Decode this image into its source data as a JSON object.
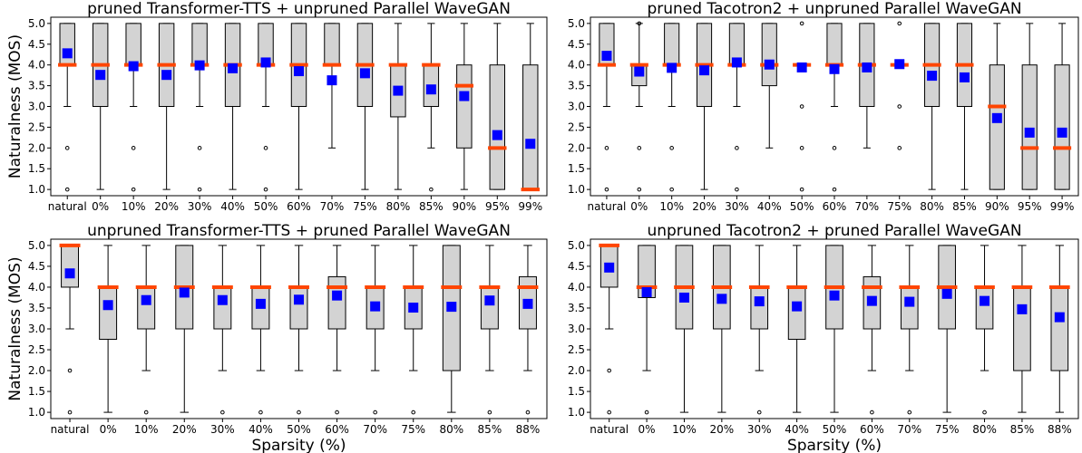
{
  "chart_data": [
    {
      "type": "box",
      "title": "pruned Transformer-TTS + unpruned Parallel WaveGAN",
      "xlabel": "",
      "ylabel": "Naturalness (MOS)",
      "ylim": [
        0.85,
        5.15
      ],
      "yticks": [
        "1.0",
        "1.5",
        "2.0",
        "2.5",
        "3.0",
        "3.5",
        "4.0",
        "4.5",
        "5.0"
      ],
      "categories": [
        "natural",
        "0%",
        "10%",
        "20%",
        "30%",
        "40%",
        "50%",
        "60%",
        "70%",
        "75%",
        "80%",
        "85%",
        "90%",
        "95%",
        "99%"
      ],
      "boxes": [
        {
          "q1": 4.0,
          "median": 4.0,
          "q3": 5.0,
          "wlo": 3.0,
          "whi": 5.0,
          "mean": 4.28,
          "outliers": [
            2.0,
            1.0
          ]
        },
        {
          "q1": 3.0,
          "median": 4.0,
          "q3": 5.0,
          "wlo": 1.0,
          "whi": 5.0,
          "mean": 3.76,
          "outliers": []
        },
        {
          "q1": 4.0,
          "median": 4.0,
          "q3": 5.0,
          "wlo": 3.0,
          "whi": 5.0,
          "mean": 3.97,
          "outliers": [
            2.0,
            1.0
          ]
        },
        {
          "q1": 3.0,
          "median": 4.0,
          "q3": 5.0,
          "wlo": 1.0,
          "whi": 5.0,
          "mean": 3.76,
          "outliers": []
        },
        {
          "q1": 4.0,
          "median": 4.0,
          "q3": 5.0,
          "wlo": 3.0,
          "whi": 5.0,
          "mean": 3.99,
          "outliers": [
            2.0,
            1.0
          ]
        },
        {
          "q1": 3.0,
          "median": 4.0,
          "q3": 5.0,
          "wlo": 1.0,
          "whi": 5.0,
          "mean": 3.92,
          "outliers": []
        },
        {
          "q1": 4.0,
          "median": 4.0,
          "q3": 5.0,
          "wlo": 3.0,
          "whi": 5.0,
          "mean": 4.06,
          "outliers": [
            2.0,
            1.0
          ]
        },
        {
          "q1": 3.0,
          "median": 4.0,
          "q3": 5.0,
          "wlo": 1.0,
          "whi": 5.0,
          "mean": 3.85,
          "outliers": []
        },
        {
          "q1": 4.0,
          "median": 4.0,
          "q3": 5.0,
          "wlo": 2.0,
          "whi": 5.0,
          "mean": 3.63,
          "outliers": []
        },
        {
          "q1": 3.0,
          "median": 4.0,
          "q3": 5.0,
          "wlo": 1.0,
          "whi": 5.0,
          "mean": 3.8,
          "outliers": []
        },
        {
          "q1": 2.75,
          "median": 4.0,
          "q3": 4.0,
          "wlo": 1.0,
          "whi": 5.0,
          "mean": 3.38,
          "outliers": []
        },
        {
          "q1": 3.0,
          "median": 4.0,
          "q3": 4.0,
          "wlo": 2.0,
          "whi": 5.0,
          "mean": 3.41,
          "outliers": [
            1.0
          ]
        },
        {
          "q1": 2.0,
          "median": 3.5,
          "q3": 4.0,
          "wlo": 1.0,
          "whi": 5.0,
          "mean": 3.25,
          "outliers": []
        },
        {
          "q1": 1.0,
          "median": 2.0,
          "q3": 4.0,
          "wlo": 1.0,
          "whi": 5.0,
          "mean": 2.31,
          "outliers": []
        },
        {
          "q1": 1.0,
          "median": 1.0,
          "q3": 4.0,
          "wlo": 1.0,
          "whi": 5.0,
          "mean": 2.1,
          "outliers": []
        }
      ]
    },
    {
      "type": "box",
      "title": "pruned Tacotron2 + unpruned Parallel WaveGAN",
      "xlabel": "",
      "ylabel": "",
      "ylim": [
        0.85,
        5.15
      ],
      "yticks": [
        "1.0",
        "1.5",
        "2.0",
        "2.5",
        "3.0",
        "3.5",
        "4.0",
        "4.5",
        "5.0"
      ],
      "categories": [
        "natural",
        "0%",
        "10%",
        "20%",
        "30%",
        "40%",
        "50%",
        "60%",
        "70%",
        "75%",
        "80%",
        "85%",
        "90%",
        "95%",
        "99%"
      ],
      "boxes": [
        {
          "q1": 4.0,
          "median": 4.0,
          "q3": 5.0,
          "wlo": 3.0,
          "whi": 5.0,
          "mean": 4.22,
          "outliers": [
            2.0,
            1.0
          ]
        },
        {
          "q1": 3.5,
          "median": 4.0,
          "q3": 4.0,
          "wlo": 3.0,
          "whi": 5.0,
          "mean": 3.84,
          "outliers": [
            5.0,
            2.0,
            1.0
          ]
        },
        {
          "q1": 4.0,
          "median": 4.0,
          "q3": 5.0,
          "wlo": 3.0,
          "whi": 5.0,
          "mean": 3.93,
          "outliers": [
            2.0,
            1.0
          ]
        },
        {
          "q1": 3.0,
          "median": 4.0,
          "q3": 5.0,
          "wlo": 1.0,
          "whi": 5.0,
          "mean": 3.87,
          "outliers": []
        },
        {
          "q1": 4.0,
          "median": 4.0,
          "q3": 5.0,
          "wlo": 3.0,
          "whi": 5.0,
          "mean": 4.06,
          "outliers": [
            2.0,
            1.0
          ]
        },
        {
          "q1": 3.5,
          "median": 4.0,
          "q3": 5.0,
          "wlo": 2.0,
          "whi": 5.0,
          "mean": 4.01,
          "outliers": []
        },
        {
          "q1": 4.0,
          "median": 4.0,
          "q3": 4.0,
          "wlo": 4.0,
          "whi": 4.0,
          "mean": 3.94,
          "outliers": [
            5.0,
            3.0,
            2.0,
            1.0
          ]
        },
        {
          "q1": 4.0,
          "median": 4.0,
          "q3": 5.0,
          "wlo": 3.0,
          "whi": 5.0,
          "mean": 3.9,
          "outliers": [
            2.0,
            1.0
          ]
        },
        {
          "q1": 3.0,
          "median": 4.0,
          "q3": 5.0,
          "wlo": 2.0,
          "whi": 5.0,
          "mean": 3.94,
          "outliers": []
        },
        {
          "q1": 4.0,
          "median": 4.0,
          "q3": 4.0,
          "wlo": 4.0,
          "whi": 4.0,
          "mean": 4.02,
          "outliers": [
            5.0,
            3.0,
            2.0
          ]
        },
        {
          "q1": 3.0,
          "median": 4.0,
          "q3": 5.0,
          "wlo": 1.0,
          "whi": 5.0,
          "mean": 3.74,
          "outliers": []
        },
        {
          "q1": 3.0,
          "median": 4.0,
          "q3": 5.0,
          "wlo": 1.0,
          "whi": 5.0,
          "mean": 3.7,
          "outliers": []
        },
        {
          "q1": 1.0,
          "median": 3.0,
          "q3": 4.0,
          "wlo": 1.0,
          "whi": 5.0,
          "mean": 2.72,
          "outliers": []
        },
        {
          "q1": 1.0,
          "median": 2.0,
          "q3": 4.0,
          "wlo": 1.0,
          "whi": 5.0,
          "mean": 2.37,
          "outliers": []
        },
        {
          "q1": 1.0,
          "median": 2.0,
          "q3": 4.0,
          "wlo": 1.0,
          "whi": 5.0,
          "mean": 2.37,
          "outliers": []
        }
      ]
    },
    {
      "type": "box",
      "title": "unpruned Transformer-TTS + pruned Parallel WaveGAN",
      "xlabel": "Sparsity (%)",
      "ylabel": "Naturalness (MOS)",
      "ylim": [
        0.85,
        5.15
      ],
      "yticks": [
        "1.0",
        "1.5",
        "2.0",
        "2.5",
        "3.0",
        "3.5",
        "4.0",
        "4.5",
        "5.0"
      ],
      "categories": [
        "natural",
        "0%",
        "10%",
        "20%",
        "30%",
        "40%",
        "50%",
        "60%",
        "70%",
        "75%",
        "80%",
        "85%",
        "88%"
      ],
      "boxes": [
        {
          "q1": 4.0,
          "median": 5.0,
          "q3": 5.0,
          "wlo": 3.0,
          "whi": 5.0,
          "mean": 4.33,
          "outliers": [
            2.0,
            1.0
          ]
        },
        {
          "q1": 2.75,
          "median": 4.0,
          "q3": 4.0,
          "wlo": 1.0,
          "whi": 5.0,
          "mean": 3.57,
          "outliers": []
        },
        {
          "q1": 3.0,
          "median": 4.0,
          "q3": 4.0,
          "wlo": 2.0,
          "whi": 5.0,
          "mean": 3.69,
          "outliers": [
            1.0
          ]
        },
        {
          "q1": 3.0,
          "median": 4.0,
          "q3": 5.0,
          "wlo": 1.0,
          "whi": 5.0,
          "mean": 3.87,
          "outliers": []
        },
        {
          "q1": 3.0,
          "median": 4.0,
          "q3": 4.0,
          "wlo": 2.0,
          "whi": 5.0,
          "mean": 3.69,
          "outliers": [
            1.0
          ]
        },
        {
          "q1": 3.0,
          "median": 4.0,
          "q3": 4.0,
          "wlo": 2.0,
          "whi": 5.0,
          "mean": 3.6,
          "outliers": [
            1.0
          ]
        },
        {
          "q1": 3.0,
          "median": 4.0,
          "q3": 4.0,
          "wlo": 2.0,
          "whi": 5.0,
          "mean": 3.7,
          "outliers": [
            1.0
          ]
        },
        {
          "q1": 3.0,
          "median": 4.0,
          "q3": 4.25,
          "wlo": 2.0,
          "whi": 5.0,
          "mean": 3.8,
          "outliers": [
            1.0
          ]
        },
        {
          "q1": 3.0,
          "median": 4.0,
          "q3": 4.0,
          "wlo": 2.0,
          "whi": 5.0,
          "mean": 3.54,
          "outliers": [
            1.0
          ]
        },
        {
          "q1": 3.0,
          "median": 4.0,
          "q3": 4.0,
          "wlo": 2.0,
          "whi": 5.0,
          "mean": 3.51,
          "outliers": [
            1.0
          ]
        },
        {
          "q1": 2.0,
          "median": 4.0,
          "q3": 5.0,
          "wlo": 1.0,
          "whi": 5.0,
          "mean": 3.53,
          "outliers": []
        },
        {
          "q1": 3.0,
          "median": 4.0,
          "q3": 4.0,
          "wlo": 2.0,
          "whi": 5.0,
          "mean": 3.68,
          "outliers": [
            1.0
          ]
        },
        {
          "q1": 3.0,
          "median": 4.0,
          "q3": 4.25,
          "wlo": 2.0,
          "whi": 5.0,
          "mean": 3.6,
          "outliers": [
            1.0
          ]
        }
      ]
    },
    {
      "type": "box",
      "title": "unpruned Tacotron2 + pruned Parallel WaveGAN",
      "xlabel": "Sparsity (%)",
      "ylabel": "",
      "ylim": [
        0.85,
        5.15
      ],
      "yticks": [
        "1.0",
        "1.5",
        "2.0",
        "2.5",
        "3.0",
        "3.5",
        "4.0",
        "4.5",
        "5.0"
      ],
      "categories": [
        "natural",
        "0%",
        "10%",
        "20%",
        "30%",
        "40%",
        "50%",
        "60%",
        "70%",
        "75%",
        "80%",
        "85%",
        "88%"
      ],
      "boxes": [
        {
          "q1": 4.0,
          "median": 5.0,
          "q3": 5.0,
          "wlo": 3.0,
          "whi": 5.0,
          "mean": 4.47,
          "outliers": [
            2.0,
            1.0
          ]
        },
        {
          "q1": 3.75,
          "median": 4.0,
          "q3": 5.0,
          "wlo": 2.0,
          "whi": 5.0,
          "mean": 3.88,
          "outliers": [
            1.0
          ]
        },
        {
          "q1": 3.0,
          "median": 4.0,
          "q3": 5.0,
          "wlo": 1.0,
          "whi": 5.0,
          "mean": 3.75,
          "outliers": []
        },
        {
          "q1": 3.0,
          "median": 4.0,
          "q3": 5.0,
          "wlo": 1.0,
          "whi": 5.0,
          "mean": 3.72,
          "outliers": []
        },
        {
          "q1": 3.0,
          "median": 4.0,
          "q3": 4.0,
          "wlo": 2.0,
          "whi": 5.0,
          "mean": 3.66,
          "outliers": [
            1.0
          ]
        },
        {
          "q1": 2.75,
          "median": 4.0,
          "q3": 4.0,
          "wlo": 1.0,
          "whi": 5.0,
          "mean": 3.54,
          "outliers": []
        },
        {
          "q1": 3.0,
          "median": 4.0,
          "q3": 5.0,
          "wlo": 1.0,
          "whi": 5.0,
          "mean": 3.8,
          "outliers": []
        },
        {
          "q1": 3.0,
          "median": 4.0,
          "q3": 4.25,
          "wlo": 2.0,
          "whi": 5.0,
          "mean": 3.67,
          "outliers": [
            1.0
          ]
        },
        {
          "q1": 3.0,
          "median": 4.0,
          "q3": 4.0,
          "wlo": 2.0,
          "whi": 5.0,
          "mean": 3.65,
          "outliers": [
            1.0
          ]
        },
        {
          "q1": 3.0,
          "median": 4.0,
          "q3": 5.0,
          "wlo": 1.0,
          "whi": 5.0,
          "mean": 3.84,
          "outliers": []
        },
        {
          "q1": 3.0,
          "median": 4.0,
          "q3": 4.0,
          "wlo": 2.0,
          "whi": 5.0,
          "mean": 3.67,
          "outliers": [
            1.0
          ]
        },
        {
          "q1": 2.0,
          "median": 4.0,
          "q3": 4.0,
          "wlo": 1.0,
          "whi": 5.0,
          "mean": 3.47,
          "outliers": []
        },
        {
          "q1": 2.0,
          "median": 4.0,
          "q3": 4.0,
          "wlo": 1.0,
          "whi": 5.0,
          "mean": 3.28,
          "outliers": []
        }
      ]
    }
  ],
  "colors": {
    "box_fill": "#d3d3d3",
    "median": "#ff4500",
    "mean": "#0000ff"
  }
}
